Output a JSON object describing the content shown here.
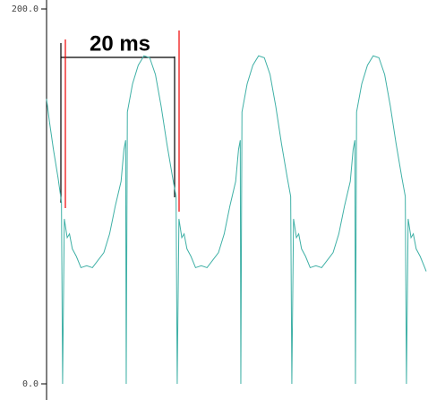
{
  "chart_data": {
    "type": "line",
    "annotation": "20 ms",
    "xlim": [
      0,
      66.25
    ],
    "ylim": [
      0,
      200
    ],
    "yticks": [
      {
        "value": 0,
        "label": "0.0"
      },
      {
        "value": 200,
        "label": "200.0"
      }
    ],
    "series": [
      {
        "color": "#3fb0a6",
        "x": [
          0,
          0.5,
          1.2,
          2.0,
          2.6,
          2.8,
          3.1,
          3.6,
          4.0,
          4.5,
          5.2,
          6.0,
          7.0,
          8.0,
          9.0,
          10.0,
          11.0,
          12.0,
          13.0,
          13.5,
          13.8,
          13.9,
          14.1,
          15.0,
          16.0,
          17.0,
          18.0,
          19.0,
          20.0,
          21.0,
          22.0,
          22.6,
          22.8,
          23.1,
          23.6,
          24.0,
          24.5,
          25.2,
          26.0,
          27.0,
          28.0,
          29.0,
          30.0,
          31.0,
          32.0,
          33.0,
          33.5,
          33.8,
          33.9,
          34.1,
          35.0,
          36.0,
          37.0,
          38.0,
          39.0,
          40.0,
          41.0,
          42.0,
          42.6,
          42.8,
          43.1,
          43.6,
          44.0,
          44.5,
          45.2,
          46.0,
          47.0,
          48.0,
          49.0,
          50.0,
          51.0,
          52.0,
          53.0,
          53.5,
          53.8,
          53.9,
          54.1,
          55.0,
          56.0,
          57.0,
          58.0,
          59.0,
          60.0,
          61.0,
          62.0,
          62.6,
          62.8,
          63.1,
          63.6,
          64.0,
          64.5,
          65.2,
          66.0,
          66.25
        ],
        "values": [
          152,
          140,
          125,
          110,
          97,
          0,
          88,
          78,
          80,
          72,
          68,
          62,
          63,
          62,
          66,
          70,
          80,
          95,
          108,
          125,
          130,
          0,
          145,
          160,
          170,
          175,
          174,
          165,
          148,
          128,
          110,
          100,
          0,
          88,
          78,
          80,
          72,
          68,
          62,
          63,
          62,
          66,
          70,
          80,
          95,
          108,
          125,
          130,
          0,
          145,
          160,
          170,
          175,
          174,
          165,
          148,
          128,
          110,
          100,
          0,
          88,
          78,
          80,
          72,
          68,
          62,
          63,
          62,
          66,
          70,
          80,
          95,
          108,
          125,
          130,
          0,
          145,
          160,
          170,
          175,
          174,
          165,
          148,
          128,
          110,
          100,
          0,
          88,
          78,
          80,
          72,
          68,
          62,
          60
        ]
      }
    ]
  }
}
